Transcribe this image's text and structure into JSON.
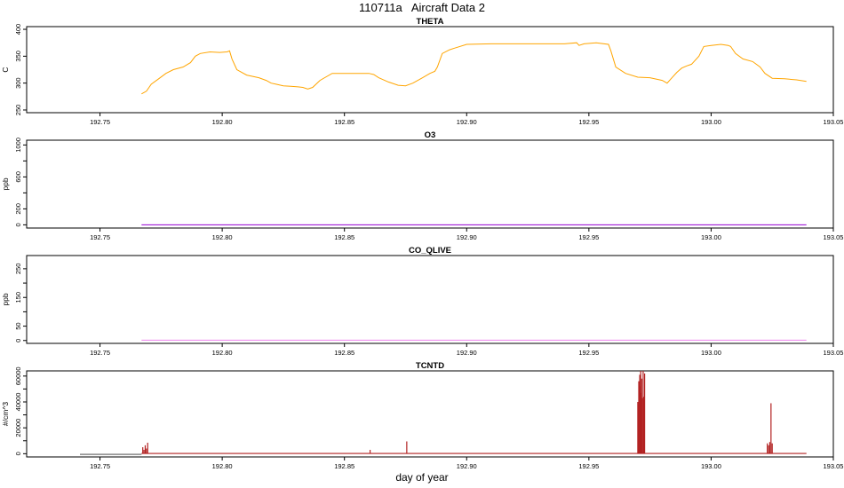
{
  "figure": {
    "title": "110711a   Aircraft Data 2",
    "xlabel": "day of year"
  },
  "chart_data": [
    {
      "type": "line",
      "title": "THETA",
      "ylabel": "C",
      "xlim": [
        192.72,
        193.05
      ],
      "ylim": [
        245,
        405
      ],
      "xticks": [
        "192.75",
        "192.80",
        "192.85",
        "192.90",
        "192.95",
        "193.00",
        "193.05"
      ],
      "yticks": [
        "250",
        "300",
        "350",
        "400"
      ],
      "color": "#ffa500",
      "series": [
        {
          "x": [
            192.767,
            192.769,
            192.771,
            192.774,
            192.777,
            192.78,
            192.784,
            192.787,
            192.789,
            192.791,
            192.795,
            192.799,
            192.802,
            192.803,
            192.804,
            192.806,
            192.81,
            192.815,
            192.818,
            192.82,
            192.822,
            192.825,
            192.828,
            192.831,
            192.833,
            192.835,
            192.837,
            192.84,
            192.845,
            192.85,
            192.855,
            192.86,
            192.862,
            192.864,
            192.868,
            192.872,
            192.875,
            192.878,
            192.882,
            192.885,
            192.887,
            192.888,
            192.89,
            192.893,
            192.895,
            192.9,
            192.91,
            192.92,
            192.93,
            192.94,
            192.945,
            192.946,
            192.948,
            192.953,
            192.958,
            192.959,
            192.961,
            192.965,
            192.97,
            192.975,
            192.98,
            192.982,
            192.984,
            192.986,
            192.988,
            192.99,
            192.992,
            192.995,
            192.997,
            193.0,
            193.004,
            193.007,
            193.008,
            193.01,
            193.013,
            193.017,
            193.02,
            193.022,
            193.025,
            193.03,
            193.035,
            193.039
          ],
          "y": [
            280,
            285,
            298,
            308,
            318,
            325,
            330,
            338,
            350,
            355,
            358,
            357,
            358,
            360,
            345,
            325,
            315,
            310,
            305,
            300,
            298,
            295,
            294,
            293,
            292,
            289,
            292,
            305,
            318,
            318,
            318,
            318,
            316,
            310,
            302,
            296,
            295,
            300,
            310,
            318,
            322,
            330,
            355,
            362,
            365,
            372,
            373,
            373,
            373,
            373,
            375,
            370,
            373,
            375,
            372,
            360,
            330,
            318,
            311,
            310,
            305,
            300,
            310,
            320,
            328,
            332,
            335,
            350,
            368,
            370,
            372,
            370,
            368,
            355,
            345,
            340,
            330,
            318,
            309,
            308,
            306,
            303
          ]
        }
      ]
    },
    {
      "type": "line",
      "title": "O3",
      "ylabel": "ppb",
      "xlim": [
        192.72,
        193.05
      ],
      "ylim": [
        -40,
        1060
      ],
      "xticks": [
        "192.75",
        "192.80",
        "192.85",
        "192.90",
        "192.95",
        "193.00",
        "193.05"
      ],
      "yticks": [
        "0",
        "200",
        "600",
        "1000"
      ],
      "yminor": [
        400,
        800
      ],
      "color": "#9400d3",
      "series": [
        {
          "x": [
            192.767,
            193.039
          ],
          "y": [
            0,
            0
          ]
        }
      ]
    },
    {
      "type": "line",
      "title": "CO_QLIVE",
      "ylabel": "ppb",
      "xlim": [
        192.72,
        193.05
      ],
      "ylim": [
        -10,
        296
      ],
      "xticks": [
        "192.75",
        "192.80",
        "192.85",
        "192.90",
        "192.95",
        "193.00",
        "193.05"
      ],
      "yticks": [
        "0",
        "50",
        "150",
        "250"
      ],
      "yminor": [
        100,
        200
      ],
      "color": "#ee82ee",
      "series": [
        {
          "x": [
            192.767,
            193.039
          ],
          "y": [
            1,
            1
          ]
        }
      ]
    },
    {
      "type": "line",
      "title": "TCNTD",
      "ylabel": "#/cm^3",
      "xlim": [
        192.72,
        193.05
      ],
      "ylim": [
        -2500,
        64000
      ],
      "xticks": [
        "192.75",
        "192.80",
        "192.85",
        "192.90",
        "192.95",
        "193.00",
        "193.05"
      ],
      "yticks": [
        "0",
        "20000",
        "40000",
        "60000"
      ],
      "yminor": [
        10000,
        30000,
        50000
      ],
      "color": "#b22222",
      "baseline": {
        "x": [
          192.767,
          193.039
        ],
        "y": 200
      },
      "spikes": [
        {
          "x": 192.7675,
          "y": 5000
        },
        {
          "x": 192.768,
          "y": 3000
        },
        {
          "x": 192.7685,
          "y": 6500
        },
        {
          "x": 192.769,
          "y": 4000
        },
        {
          "x": 192.7695,
          "y": 8500
        },
        {
          "x": 192.8605,
          "y": 3000
        },
        {
          "x": 192.8755,
          "y": 9500
        },
        {
          "x": 192.97,
          "y": 40000
        },
        {
          "x": 192.9702,
          "y": 38000
        },
        {
          "x": 192.9704,
          "y": 56000
        },
        {
          "x": 192.9706,
          "y": 49000
        },
        {
          "x": 192.9708,
          "y": 61000
        },
        {
          "x": 192.971,
          "y": 52000
        },
        {
          "x": 192.9712,
          "y": 64000
        },
        {
          "x": 192.9714,
          "y": 47000
        },
        {
          "x": 192.9716,
          "y": 58000
        },
        {
          "x": 192.9718,
          "y": 43000
        },
        {
          "x": 192.9722,
          "y": 64000
        },
        {
          "x": 192.9725,
          "y": 44000
        },
        {
          "x": 192.9728,
          "y": 62000
        },
        {
          "x": 193.023,
          "y": 8000
        },
        {
          "x": 193.0235,
          "y": 6500
        },
        {
          "x": 193.024,
          "y": 9000
        },
        {
          "x": 193.0245,
          "y": 39000
        },
        {
          "x": 193.025,
          "y": 8000
        }
      ]
    }
  ]
}
